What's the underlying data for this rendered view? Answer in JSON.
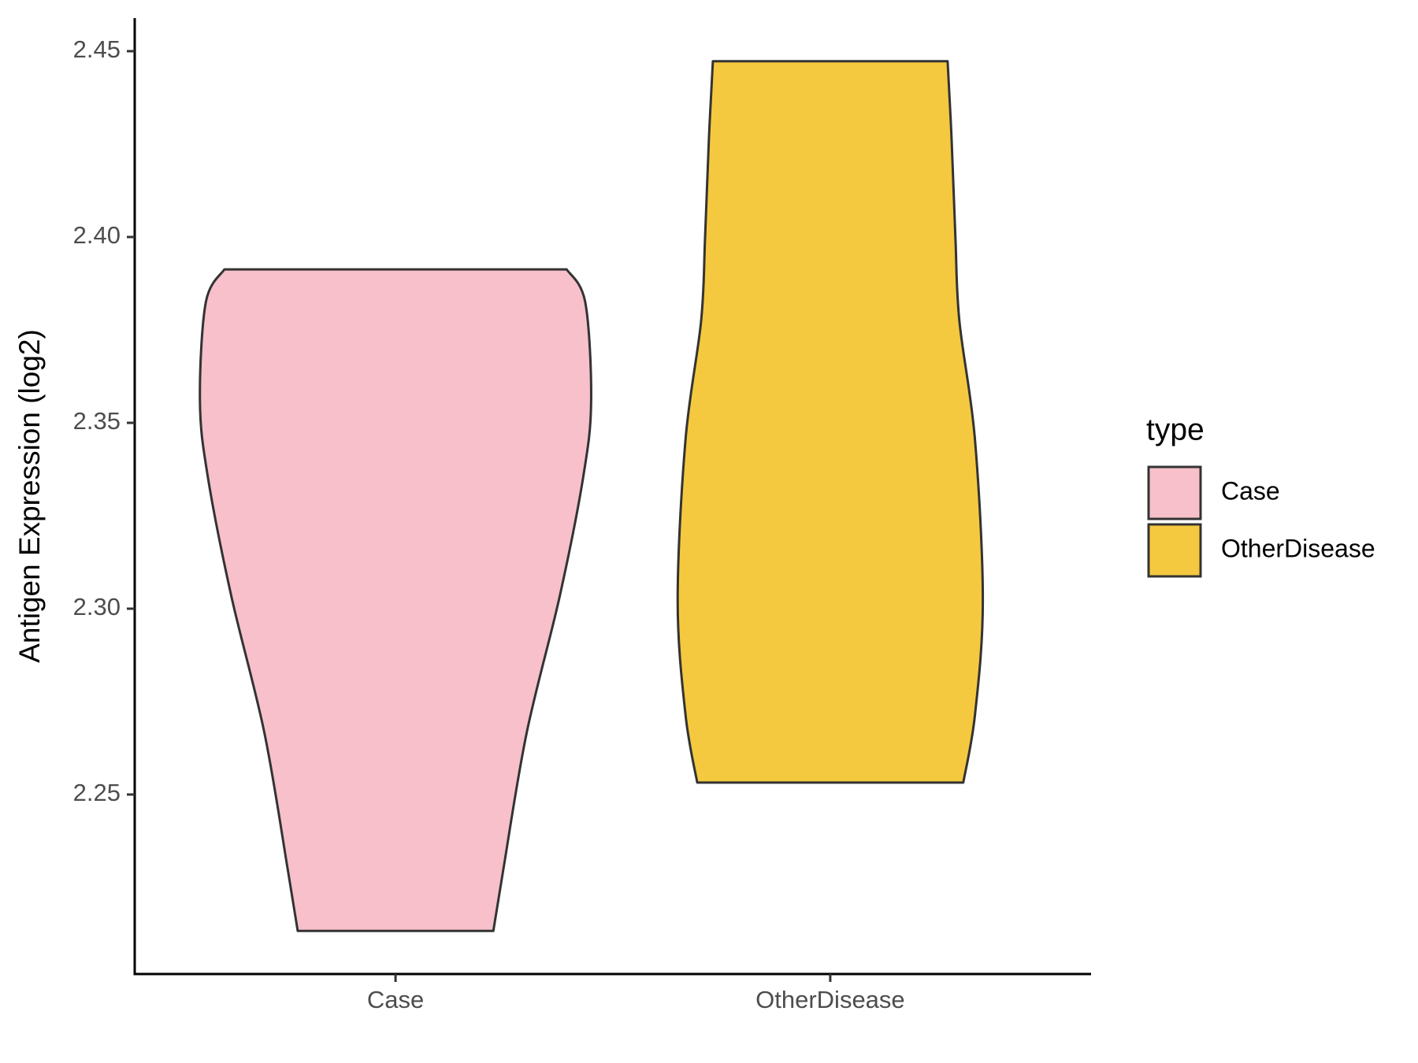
{
  "chart_data": {
    "type": "violin",
    "y_label": "Antigen Expression (log2)",
    "categories": [
      "Case",
      "OtherDisease"
    ],
    "series": [
      {
        "name": "Case",
        "color": "#f7c0cb",
        "values": [
          2.3913,
          2.3824,
          2.356,
          2.3356,
          2.3035,
          2.2665,
          2.2295,
          2.2133
        ],
        "density": [
          0.875,
          0.97,
          1.0,
          0.96,
          0.84,
          0.67,
          0.55,
          0.5
        ]
      },
      {
        "name": "OtherDisease",
        "color": "#f5c93f",
        "values": [
          2.4473,
          2.4268,
          2.3997,
          2.3775,
          2.3454,
          2.3023,
          2.2715,
          2.2532
        ],
        "density": [
          0.6,
          0.62,
          0.64,
          0.66,
          0.74,
          0.78,
          0.74,
          0.68
        ]
      }
    ],
    "ylim": [
      2.2017,
      2.4589
    ],
    "yticks": [
      2.25,
      {
        "value": 2.3,
        "label": "2.30"
      },
      2.35,
      {
        "value": 2.4,
        "label": "2.40"
      },
      2.45
    ],
    "legend_title": "type",
    "legend": "right"
  }
}
